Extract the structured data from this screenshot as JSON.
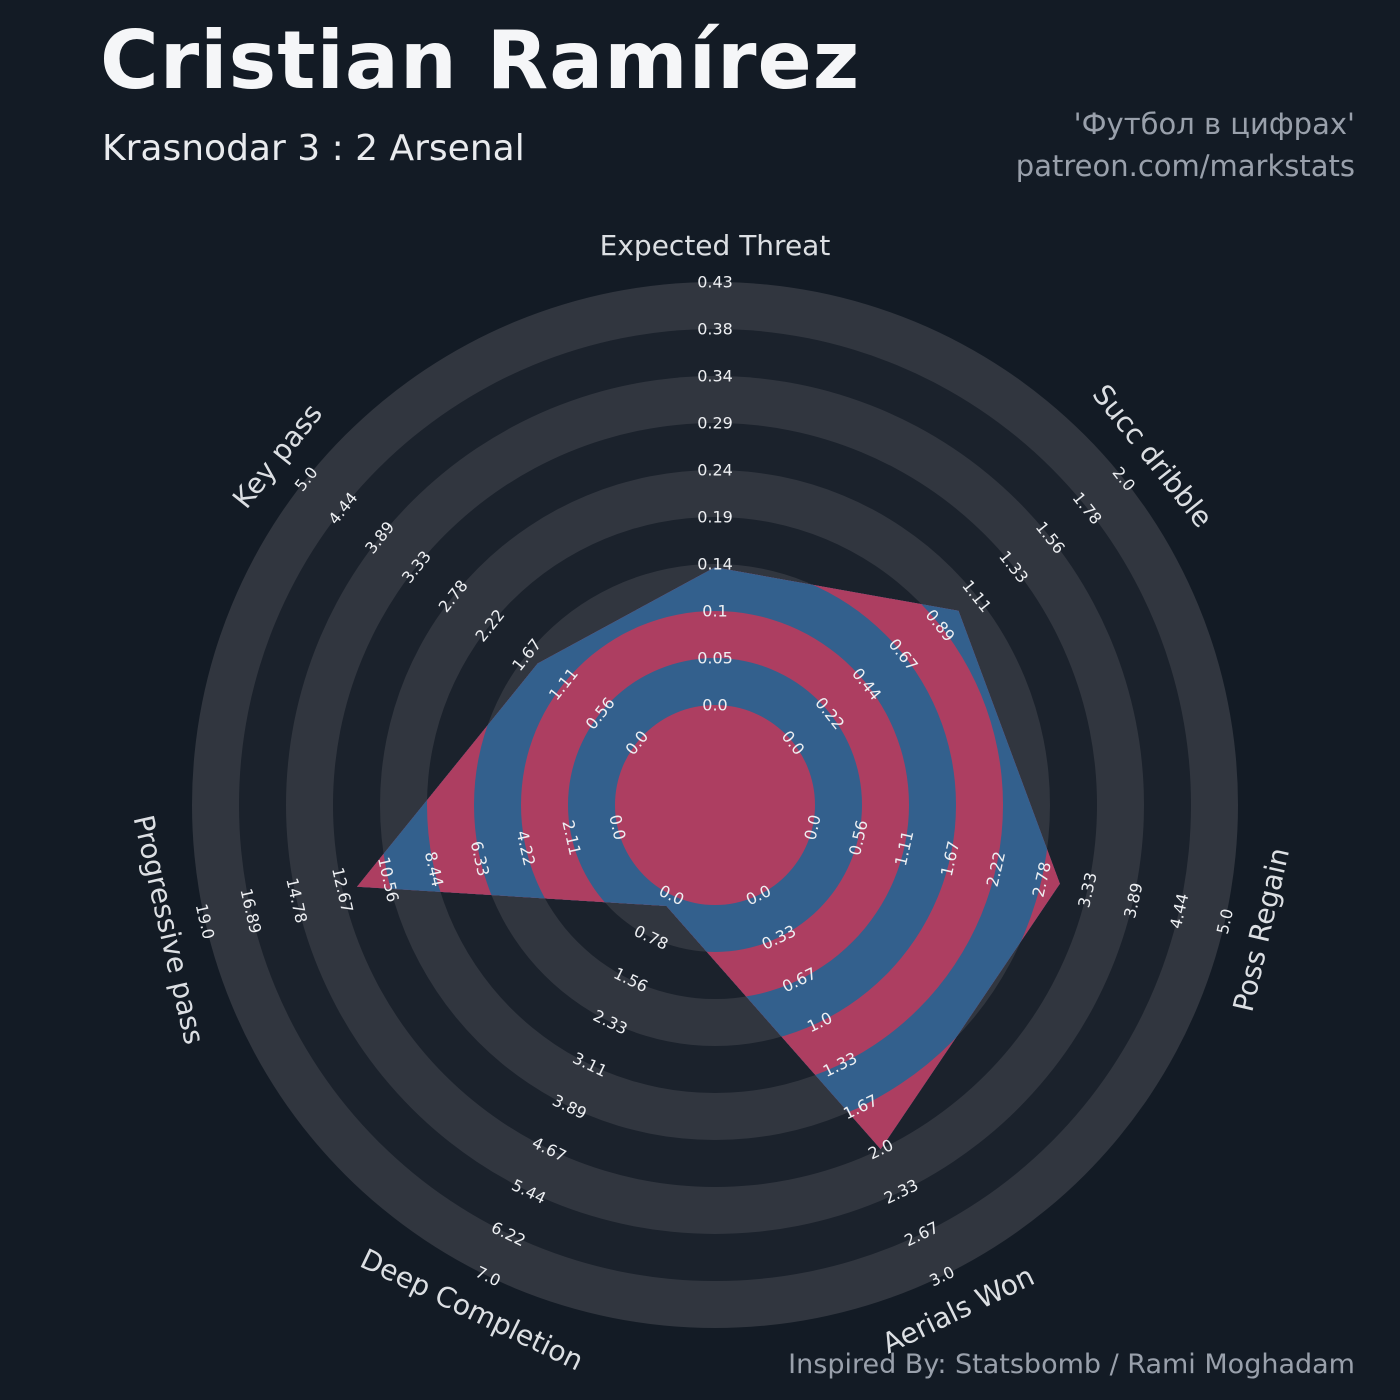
{
  "header": {
    "title": "Cristian Ramírez",
    "subtitle": "Krasnodar 3 : 2 Arsenal"
  },
  "watermark": {
    "line1": "'Футбол в цифрах'",
    "line2": "patreon.com/markstats"
  },
  "footer": {
    "credit": "Inspired By: Statsbomb / Rami Moghadam"
  },
  "colors": {
    "background": "#131b25",
    "ring_light": "#31363f",
    "ring_dark": "#1b222c",
    "polygon_blue": "#33608d",
    "polygon_crimson": "#ad3e61",
    "tick_text": "#edeff2",
    "axis_title_text": "#dcdfe3",
    "title_text": "#f5f6f8",
    "muted_text": "#99a0ab"
  },
  "chart_data": {
    "type": "radar",
    "title": "Cristian Ramírez",
    "subtitle": "Krasnodar 3 : 2 Arsenal",
    "rings": 9,
    "start_axis": "top",
    "direction": "clockwise",
    "legend_position": "none",
    "grid": "concentric-bands",
    "axes": [
      {
        "label": "Expected Threat",
        "min": 0,
        "max": 0.43,
        "value": 0.14,
        "ticks": [
          "0.0",
          "0.05",
          "0.1",
          "0.14",
          "0.19",
          "0.24",
          "0.29",
          "0.34",
          "0.38",
          "0.43"
        ]
      },
      {
        "label": "Succ dribble",
        "min": 0,
        "max": 2.0,
        "value": 1.0,
        "ticks": [
          "0.0",
          "0.22",
          "0.44",
          "0.67",
          "0.89",
          "1.11",
          "1.33",
          "1.56",
          "1.78",
          "2.0"
        ]
      },
      {
        "label": "Poss Regain",
        "min": 0,
        "max": 5.0,
        "value": 3.0,
        "ticks": [
          "0.0",
          "0.56",
          "1.11",
          "1.67",
          "2.22",
          "2.78",
          "3.33",
          "3.89",
          "4.44",
          "5.0"
        ]
      },
      {
        "label": "Aerials Won",
        "min": 0,
        "max": 3.0,
        "value": 2.0,
        "ticks": [
          "0.0",
          "0.33",
          "0.67",
          "1.0",
          "1.33",
          "1.67",
          "2.0",
          "2.33",
          "2.67",
          "3.0"
        ]
      },
      {
        "label": "Deep Completion",
        "min": 0,
        "max": 7.0,
        "value": 0.2,
        "ticks": [
          "0.0",
          "0.78",
          "1.56",
          "2.33",
          "3.11",
          "3.89",
          "4.67",
          "5.44",
          "6.22",
          "7.0"
        ]
      },
      {
        "label": "Progressive pass",
        "min": 0,
        "max": 19.0,
        "value": 12.0,
        "ticks": [
          "0.0",
          "2.11",
          "4.22",
          "6.33",
          "8.44",
          "10.56",
          "12.67",
          "14.78",
          "16.89",
          "19.0"
        ]
      },
      {
        "label": "Key pass",
        "min": 0,
        "max": 5.0,
        "value": 1.5,
        "ticks": [
          "0.0",
          "0.56",
          "1.11",
          "1.67",
          "2.22",
          "2.78",
          "3.33",
          "3.89",
          "4.44",
          "5.0"
        ]
      }
    ]
  }
}
